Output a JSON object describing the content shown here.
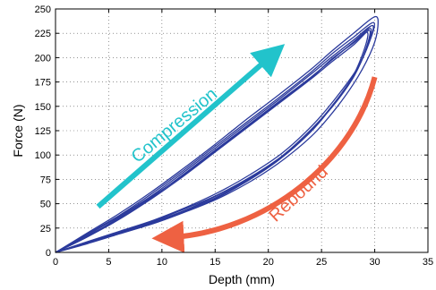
{
  "chart_data": {
    "type": "line",
    "title": "",
    "xlabel": "Depth (mm)",
    "ylabel": "Force (N)",
    "xlim": [
      0,
      35
    ],
    "ylim": [
      0,
      250
    ],
    "x_ticks": [
      0,
      5,
      10,
      15,
      20,
      25,
      30,
      35
    ],
    "y_ticks": [
      0,
      25,
      50,
      75,
      100,
      125,
      150,
      175,
      200,
      225,
      250
    ],
    "grid": true,
    "grid_style": "dotted",
    "line_color": "#2b3a9c",
    "cycles": [
      {
        "loading": [
          [
            0,
            0
          ],
          [
            3,
            16
          ],
          [
            6,
            34
          ],
          [
            9,
            55
          ],
          [
            12,
            78
          ],
          [
            15,
            103
          ],
          [
            18,
            128
          ],
          [
            21,
            153
          ],
          [
            24,
            178
          ],
          [
            26,
            196
          ],
          [
            28,
            213
          ],
          [
            29.5,
            228
          ]
        ],
        "unloading": [
          [
            29.5,
            228
          ],
          [
            29.2,
            210
          ],
          [
            28,
            180
          ],
          [
            26,
            150
          ],
          [
            24,
            124
          ],
          [
            21,
            96
          ],
          [
            18,
            74
          ],
          [
            15,
            56
          ],
          [
            12,
            42
          ],
          [
            9,
            30
          ],
          [
            6,
            20
          ],
          [
            3,
            10
          ],
          [
            0,
            0
          ]
        ]
      },
      {
        "loading": [
          [
            0,
            0
          ],
          [
            3,
            18
          ],
          [
            6,
            37
          ],
          [
            9,
            58
          ],
          [
            12,
            82
          ],
          [
            15,
            107
          ],
          [
            18,
            132
          ],
          [
            21,
            157
          ],
          [
            24,
            183
          ],
          [
            26,
            201
          ],
          [
            28,
            218
          ],
          [
            29.8,
            233
          ]
        ],
        "unloading": [
          [
            29.8,
            233
          ],
          [
            29.4,
            214
          ],
          [
            28.2,
            185
          ],
          [
            26.4,
            156
          ],
          [
            24.2,
            128
          ],
          [
            21.4,
            100
          ],
          [
            18.4,
            78
          ],
          [
            15.2,
            59
          ],
          [
            12.2,
            45
          ],
          [
            9.2,
            32
          ],
          [
            6.2,
            22
          ],
          [
            3.1,
            11
          ],
          [
            0,
            0
          ]
        ]
      },
      {
        "loading": [
          [
            0,
            0
          ],
          [
            3,
            20
          ],
          [
            6,
            40
          ],
          [
            9,
            62
          ],
          [
            12,
            86
          ],
          [
            15,
            111
          ],
          [
            18,
            137
          ],
          [
            21,
            162
          ],
          [
            24,
            188
          ],
          [
            26,
            207
          ],
          [
            28,
            225
          ],
          [
            30,
            242
          ]
        ],
        "unloading": [
          [
            30,
            242
          ],
          [
            30.3,
            232
          ],
          [
            29.8,
            210
          ],
          [
            28.4,
            180
          ],
          [
            26.5,
            150
          ],
          [
            24.3,
            122
          ],
          [
            21.5,
            96
          ],
          [
            18.5,
            74
          ],
          [
            15.4,
            56
          ],
          [
            12.3,
            42
          ],
          [
            9.3,
            30
          ],
          [
            6.2,
            20
          ],
          [
            3.1,
            10
          ],
          [
            0,
            0
          ]
        ]
      },
      {
        "loading": [
          [
            0,
            0
          ],
          [
            3,
            17
          ],
          [
            6,
            35
          ],
          [
            9,
            56
          ],
          [
            12,
            80
          ],
          [
            15,
            105
          ],
          [
            18,
            130
          ],
          [
            21,
            155
          ],
          [
            24,
            180
          ],
          [
            26,
            198
          ],
          [
            28,
            216
          ],
          [
            29.6,
            230
          ]
        ],
        "unloading": [
          [
            29.6,
            230
          ],
          [
            29.3,
            212
          ],
          [
            28.1,
            182
          ],
          [
            26.2,
            152
          ],
          [
            24,
            126
          ],
          [
            21.2,
            98
          ],
          [
            18.2,
            76
          ],
          [
            15.1,
            58
          ],
          [
            12.1,
            43
          ],
          [
            9.1,
            31
          ],
          [
            6.1,
            21
          ],
          [
            3,
            10
          ],
          [
            0,
            0
          ]
        ]
      },
      {
        "loading": [
          [
            0,
            0
          ],
          [
            3,
            19
          ],
          [
            6,
            38
          ],
          [
            9,
            60
          ],
          [
            12,
            84
          ],
          [
            15,
            109
          ],
          [
            18,
            134
          ],
          [
            21,
            159
          ],
          [
            24,
            185
          ],
          [
            26,
            204
          ],
          [
            28,
            221
          ],
          [
            29.9,
            236
          ]
        ],
        "unloading": [
          [
            29.9,
            236
          ],
          [
            29.5,
            216
          ],
          [
            28.3,
            188
          ],
          [
            26.3,
            158
          ],
          [
            24.1,
            130
          ],
          [
            21.3,
            102
          ],
          [
            18.3,
            80
          ],
          [
            15.2,
            61
          ],
          [
            12.2,
            46
          ],
          [
            9.2,
            33
          ],
          [
            6.1,
            22
          ],
          [
            3,
            11
          ],
          [
            0,
            0
          ]
        ]
      },
      {
        "loading": [
          [
            0,
            0
          ],
          [
            3,
            16
          ],
          [
            6,
            36
          ],
          [
            9,
            57
          ],
          [
            12,
            79
          ],
          [
            15,
            104
          ],
          [
            18,
            129
          ],
          [
            21,
            154
          ],
          [
            24,
            179
          ],
          [
            26,
            199
          ],
          [
            28,
            215
          ],
          [
            29.3,
            226
          ]
        ],
        "unloading": [
          [
            29.3,
            226
          ],
          [
            29,
            208
          ],
          [
            27.8,
            178
          ],
          [
            25.8,
            148
          ],
          [
            23.8,
            122
          ],
          [
            21,
            95
          ],
          [
            18,
            73
          ],
          [
            15,
            55
          ],
          [
            12,
            41
          ],
          [
            9,
            29
          ],
          [
            6,
            19
          ],
          [
            3,
            9
          ],
          [
            0,
            0
          ]
        ]
      }
    ]
  },
  "annotations": {
    "compression_label": "Compression",
    "compression_color": "#22c3cb",
    "rebound_label": "Rebound",
    "rebound_color": "#ee6142"
  }
}
